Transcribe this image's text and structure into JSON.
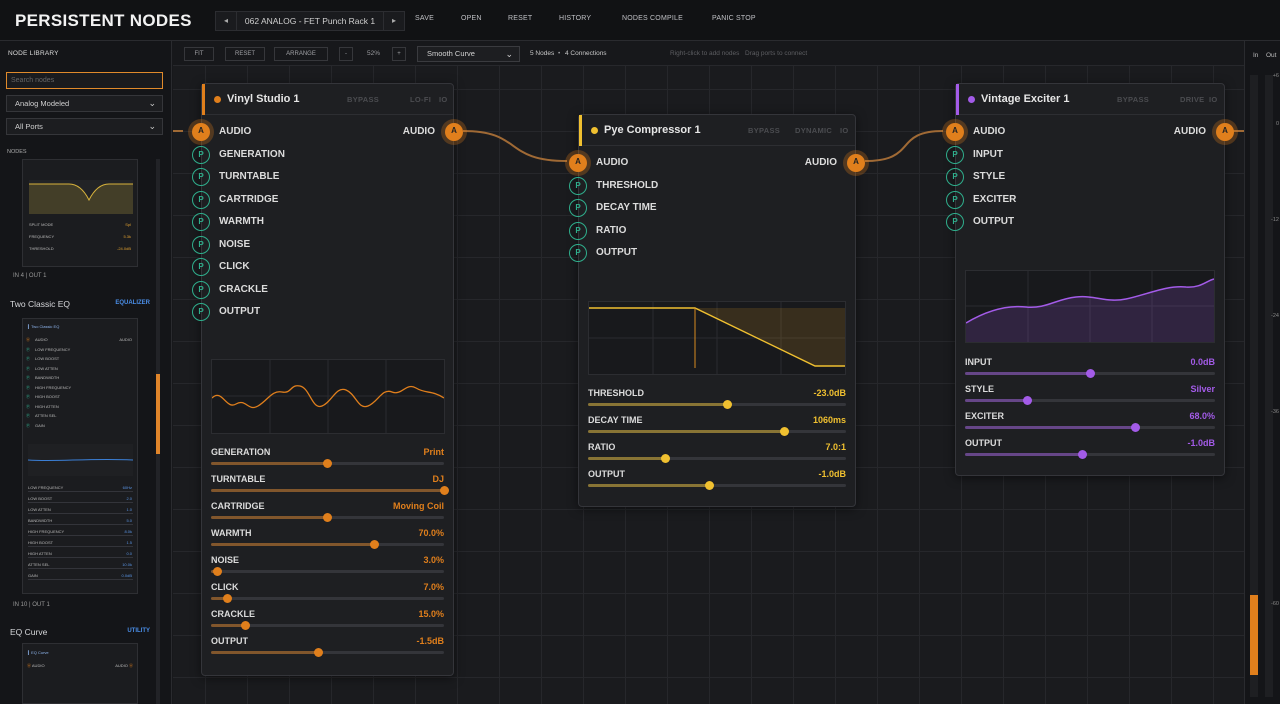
{
  "app": {
    "title": "PERSISTENT NODES"
  },
  "preset": {
    "prev": "◂",
    "name": "062 ANALOG - FET Punch Rack 1",
    "next": "▸"
  },
  "topbar": {
    "save": "SAVE",
    "open": "OPEN",
    "reset": "RESET",
    "history": "HISTORY",
    "nodes_compile": "NODES COMPILE",
    "panic_stop": "PANIC STOP"
  },
  "sidebar": {
    "title": "NODE LIBRARY",
    "search_placeholder": "Search nodes",
    "filter1": "Analog Modeled",
    "filter2": "All Ports",
    "section": "NODES",
    "card0": {
      "params": [
        {
          "label": "SPLIT MODE",
          "value": "Spl"
        },
        {
          "label": "FREQUENCY",
          "value": "5.3k"
        },
        {
          "label": "THRESHOLD",
          "value": "-24.0dB"
        }
      ],
      "io": "IN 4  |  OUT 1"
    },
    "card1": {
      "title": "Two Classic EQ",
      "tag": "EQUALIZER",
      "mini_title": "Two Classic EQ",
      "ports": [
        "AUDIO",
        "LOW FREQUENCY",
        "LOW BOOST",
        "LOW ATTEN",
        "BANDWIDTH",
        "HIGH FREQUENCY",
        "HIGH BOOST",
        "HIGH ATTEN",
        "ATTEN SEL",
        "GAIN"
      ],
      "audio_out": "AUDIO",
      "params": [
        {
          "label": "LOW FREQUENCY",
          "value": "60Hz"
        },
        {
          "label": "LOW BOOST",
          "value": "2.0"
        },
        {
          "label": "LOW ATTEN",
          "value": "1.0"
        },
        {
          "label": "BANDWIDTH",
          "value": "5.0"
        },
        {
          "label": "HIGH FREQUENCY",
          "value": "8.0k"
        },
        {
          "label": "HIGH BOOST",
          "value": "1.5"
        },
        {
          "label": "HIGH ATTEN",
          "value": "0.0"
        },
        {
          "label": "ATTEN SEL",
          "value": "10.0k"
        },
        {
          "label": "GAIN",
          "value": "0.0dB"
        }
      ],
      "io": "IN 10  |  OUT 1"
    },
    "card2": {
      "title": "EQ Curve",
      "tag": "UTILITY",
      "mini_title": "EQ Curve",
      "audio_in": "AUDIO",
      "audio_out": "AUDIO"
    }
  },
  "toolbar": {
    "fit": "FIT",
    "reset": "RESET",
    "arrange": "ARRANGE",
    "zoom_out": "-",
    "zoom": "52%",
    "zoom_in": "+",
    "curve": "Smooth Curve",
    "nodes": "5 Nodes",
    "connections": "4 Connections",
    "hint1": "Right-click to add nodes",
    "hint2": "Drag ports to connect"
  },
  "nodes": {
    "vinyl": {
      "title": "Vinyl Studio 1",
      "flags": [
        "BYPASS",
        "LO-FI",
        "IO"
      ],
      "accent": "#e07f1c",
      "ports": [
        "AUDIO",
        "GENERATION",
        "TURNTABLE",
        "CARTRIDGE",
        "WARMTH",
        "NOISE",
        "CLICK",
        "CRACKLE",
        "OUTPUT"
      ],
      "out": "AUDIO",
      "params": [
        {
          "label": "GENERATION",
          "value": "Print",
          "level": 0.5
        },
        {
          "label": "TURNTABLE",
          "value": "DJ",
          "level": 1.0
        },
        {
          "label": "CARTRIDGE",
          "value": "Moving Coil",
          "level": 0.5
        },
        {
          "label": "WARMTH",
          "value": "70.0%",
          "level": 0.7
        },
        {
          "label": "NOISE",
          "value": "3.0%",
          "level": 0.03
        },
        {
          "label": "CLICK",
          "value": "7.0%",
          "level": 0.07
        },
        {
          "label": "CRACKLE",
          "value": "15.0%",
          "level": 0.15
        },
        {
          "label": "OUTPUT",
          "value": "-1.5dB",
          "level": 0.46
        }
      ]
    },
    "pye": {
      "title": "Pye Compressor 1",
      "flags": [
        "BYPASS",
        "DYNAMIC",
        "IO"
      ],
      "accent": "#f0c030",
      "ports": [
        "AUDIO",
        "THRESHOLD",
        "DECAY TIME",
        "RATIO",
        "OUTPUT"
      ],
      "out": "AUDIO",
      "params": [
        {
          "label": "THRESHOLD",
          "value": "-23.0dB",
          "level": 0.54
        },
        {
          "label": "DECAY TIME",
          "value": "1060ms",
          "level": 0.76
        },
        {
          "label": "RATIO",
          "value": "7.0:1",
          "level": 0.3
        },
        {
          "label": "OUTPUT",
          "value": "-1.0dB",
          "level": 0.47
        }
      ]
    },
    "exciter": {
      "title": "Vintage Exciter 1",
      "flags": [
        "BYPASS",
        "DRIVE",
        "IO"
      ],
      "accent": "#a35be8",
      "ports": [
        "AUDIO",
        "INPUT",
        "STYLE",
        "EXCITER",
        "OUTPUT"
      ],
      "out": "AUDIO",
      "params": [
        {
          "label": "INPUT",
          "value": "0.0dB",
          "level": 0.5
        },
        {
          "label": "STYLE",
          "value": "Silver",
          "level": 0.25
        },
        {
          "label": "EXCITER",
          "value": "68.0%",
          "level": 0.68
        },
        {
          "label": "OUTPUT",
          "value": "-1.0dB",
          "level": 0.47
        }
      ]
    }
  },
  "meter": {
    "in": "In",
    "out": "Out",
    "ticks": [
      "+6",
      "0",
      "-12",
      "-24",
      "-36",
      "-60"
    ],
    "in_level": 0.16
  }
}
